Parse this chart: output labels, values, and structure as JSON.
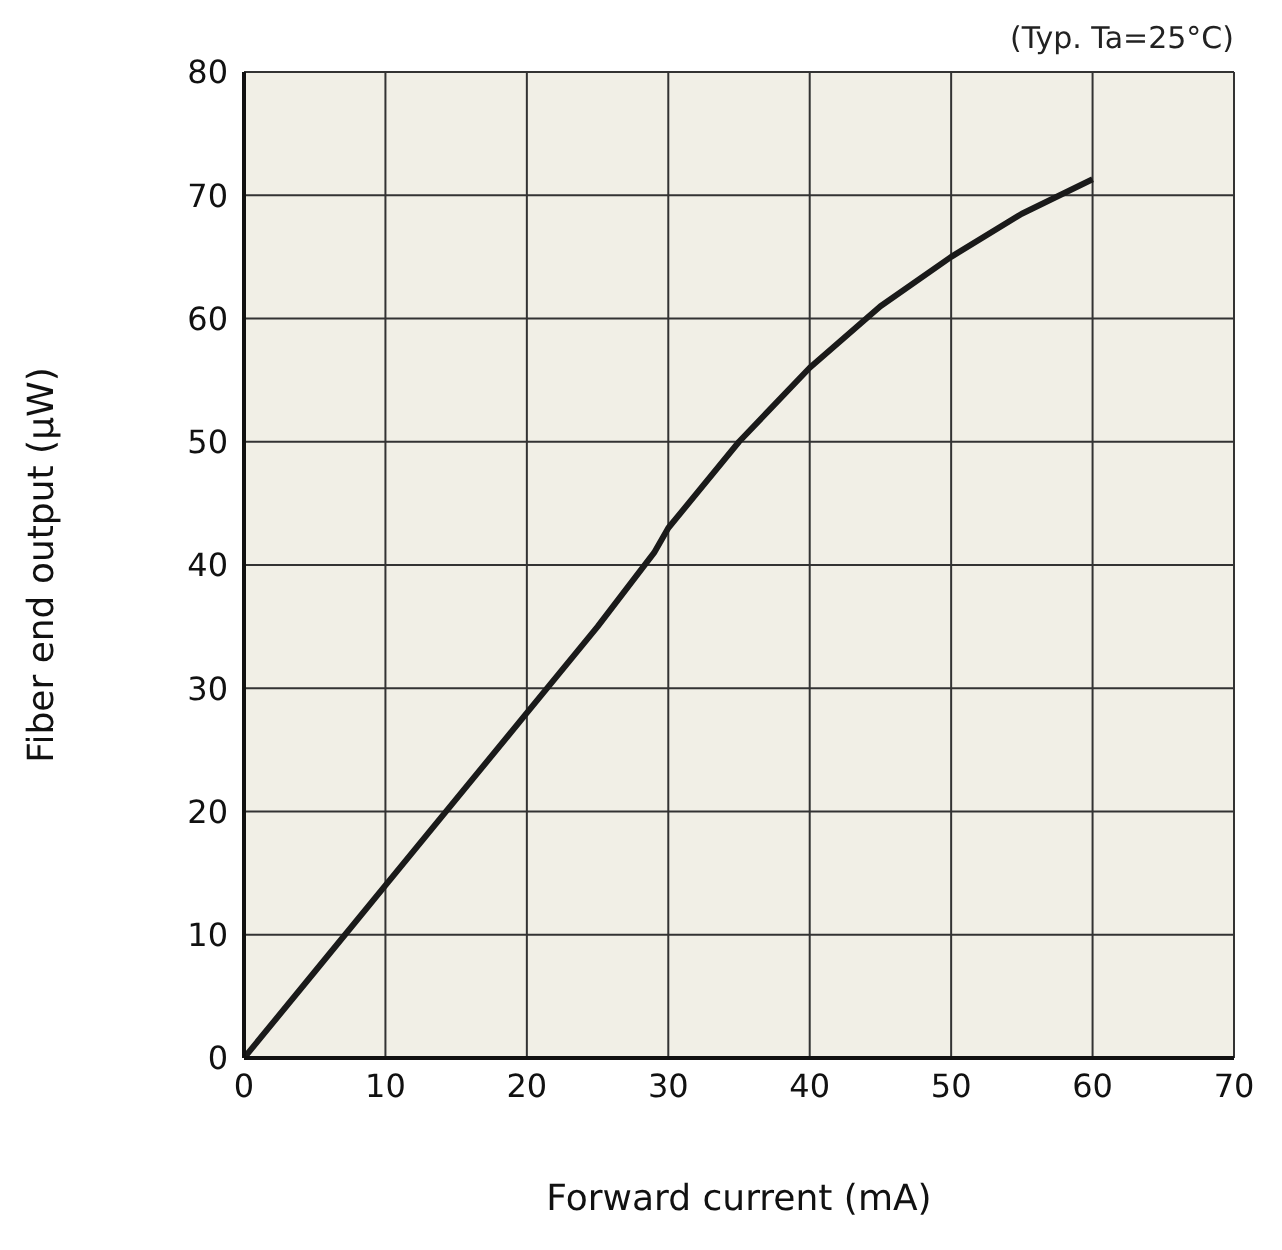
{
  "chart_data": {
    "type": "line",
    "xlabel": "Forward current (mA)",
    "ylabel": "Fiber end output (μW)",
    "annotations": [
      "(Typ. Ta=25°C)"
    ],
    "x": [
      0,
      5,
      10,
      15,
      20,
      25,
      29,
      30,
      35,
      40,
      45,
      50,
      55,
      60
    ],
    "series": [
      {
        "color": "#1a1a1a",
        "values": [
          0,
          7,
          14,
          21,
          28,
          35,
          41,
          43,
          50,
          56,
          61,
          65,
          68.5,
          71.3
        ]
      }
    ],
    "xlim": [
      0,
      70
    ],
    "xticks": [
      0,
      10,
      20,
      30,
      40,
      50,
      60,
      70
    ],
    "ylim": [
      0,
      80
    ],
    "yticks": [
      0,
      10,
      20,
      30,
      40,
      50,
      60,
      70,
      80
    ],
    "grid": true,
    "marker": "none",
    "line_style": "solid"
  }
}
